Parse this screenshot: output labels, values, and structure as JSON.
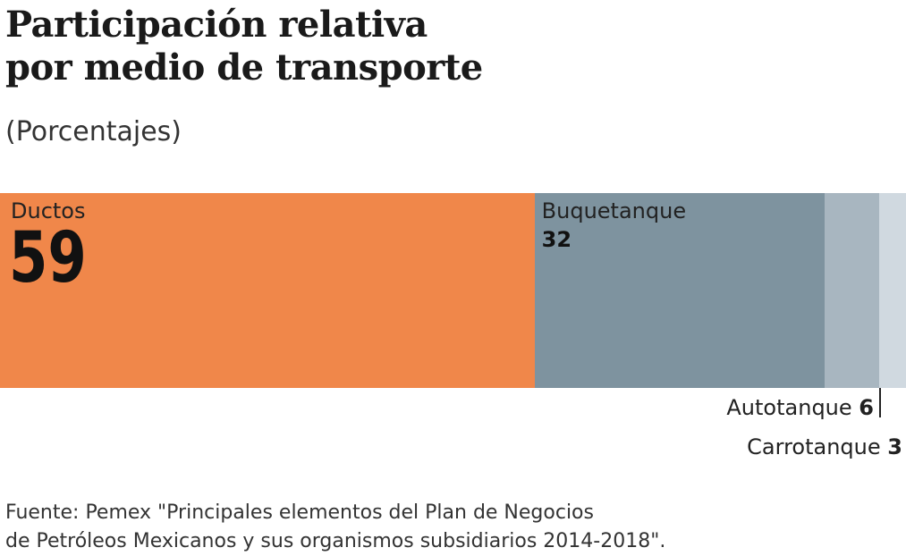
{
  "title_line1": "Participación relativa",
  "title_line2": "por medio de transporte",
  "subtitle": "(Porcentajes)",
  "source_line1": "Fuente: Pemex \"Principales elementos del Plan de Negocios",
  "source_line2": "de Petróleos Mexicanos y sus organismos subsidiarios 2014-2018\".",
  "chart_data": {
    "type": "bar",
    "stacked": true,
    "orientation": "horizontal",
    "categories": [
      "Ductos",
      "Buquetanque",
      "Autotanque",
      "Carrotanque"
    ],
    "values": [
      59,
      32,
      6,
      3
    ],
    "value_labels": [
      "59",
      "32",
      "6",
      "3"
    ],
    "colors": [
      "#f0874a",
      "#7e939f",
      "#a8b6c0",
      "#d0d9e0"
    ],
    "title": "Participación relativa por medio de transporte",
    "subtitle": "(Porcentajes)",
    "grid": false
  }
}
